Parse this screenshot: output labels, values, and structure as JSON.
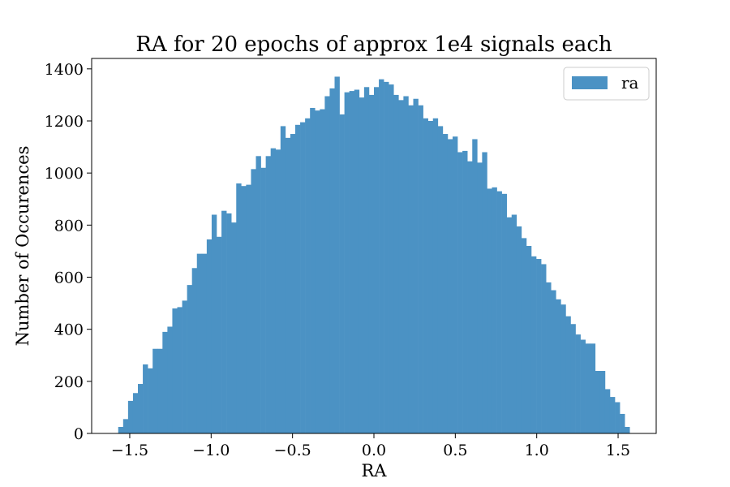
{
  "chart_data": {
    "type": "bar",
    "title": "RA for 20 epochs of approx 1e4 signals each",
    "xlabel": "RA",
    "ylabel": "Number of Occurences",
    "xlim": [
      -1.734,
      1.734
    ],
    "ylim": [
      0,
      1440
    ],
    "grid": false,
    "legend_position": "top-right",
    "bar_color": "#4b92c4",
    "x_ticks": [
      -1.5,
      -1.0,
      -0.5,
      0.0,
      0.5,
      1.0,
      1.5
    ],
    "x_tick_labels": [
      "−1.5",
      "−1.0",
      "−0.5",
      "0.0",
      "0.5",
      "1.0",
      "1.5"
    ],
    "y_ticks": [
      0,
      200,
      400,
      600,
      800,
      1000,
      1200,
      1400
    ],
    "y_tick_labels": [
      "0",
      "200",
      "400",
      "600",
      "800",
      "1000",
      "1200",
      "1400"
    ],
    "bin_start": -1.5708,
    "bin_end": 1.5708,
    "series": [
      {
        "name": "ra",
        "values": [
          25,
          55,
          125,
          155,
          190,
          265,
          250,
          325,
          325,
          390,
          410,
          480,
          485,
          510,
          570,
          635,
          690,
          690,
          745,
          840,
          755,
          855,
          845,
          810,
          960,
          950,
          955,
          1015,
          1065,
          1020,
          1065,
          1095,
          1090,
          1180,
          1135,
          1150,
          1185,
          1195,
          1210,
          1250,
          1240,
          1245,
          1295,
          1325,
          1370,
          1225,
          1310,
          1315,
          1320,
          1290,
          1330,
          1300,
          1330,
          1360,
          1350,
          1340,
          1300,
          1280,
          1295,
          1260,
          1285,
          1260,
          1210,
          1200,
          1210,
          1180,
          1150,
          1130,
          1140,
          1080,
          1085,
          1045,
          1130,
          1040,
          1080,
          940,
          945,
          930,
          920,
          830,
          840,
          795,
          750,
          720,
          680,
          670,
          650,
          580,
          550,
          515,
          495,
          450,
          420,
          380,
          360,
          345,
          345,
          240,
          240,
          170,
          140,
          120,
          75,
          25
        ]
      }
    ]
  }
}
